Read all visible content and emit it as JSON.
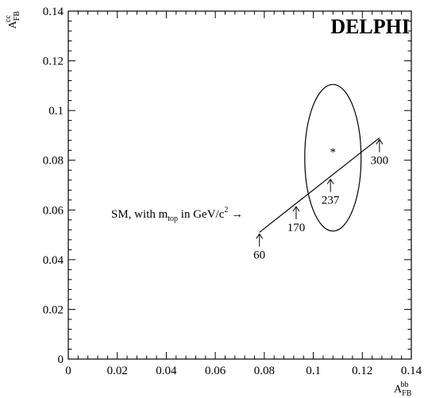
{
  "chart_data": {
    "type": "scatter",
    "title": "DELPHI",
    "xlabel": {
      "main": "A",
      "sub": "FB",
      "sup": "bb"
    },
    "ylabel": {
      "main": "A",
      "sub": "FB",
      "sup": "cc"
    },
    "xlim": [
      0,
      0.14
    ],
    "ylim": [
      0,
      0.14
    ],
    "x_ticks": [
      "0",
      "0.02",
      "0.04",
      "0.06",
      "0.08",
      "0.1",
      "0.12",
      "0.14"
    ],
    "y_ticks": [
      "0",
      "0.02",
      "0.04",
      "0.06",
      "0.08",
      "0.1",
      "0.12",
      "0.14"
    ],
    "x_tick_values": [
      0,
      0.02,
      0.04,
      0.06,
      0.08,
      0.1,
      0.12,
      0.14
    ],
    "y_tick_values": [
      0,
      0.02,
      0.04,
      0.06,
      0.08,
      0.1,
      0.12,
      0.14
    ],
    "measurement": {
      "x": 0.108,
      "y": 0.084,
      "marker": "*"
    },
    "ellipse": {
      "cx": 0.108,
      "cy": 0.081,
      "rx": 0.0115,
      "ry": 0.0295
    },
    "sm_line": {
      "x": [
        0.078,
        0.127
      ],
      "y": [
        0.051,
        0.089
      ]
    },
    "mtop_points": [
      {
        "label": "60",
        "x": 0.078,
        "y": 0.051
      },
      {
        "label": "170",
        "x": 0.093,
        "y": 0.062
      },
      {
        "label": "237",
        "x": 0.107,
        "y": 0.073
      },
      {
        "label": "300",
        "x": 0.127,
        "y": 0.089
      }
    ],
    "annotation": {
      "prefix": "SM, with m",
      "sub": "top",
      "middle": " in GeV/c",
      "sup": "2",
      "arrow": " →"
    }
  }
}
